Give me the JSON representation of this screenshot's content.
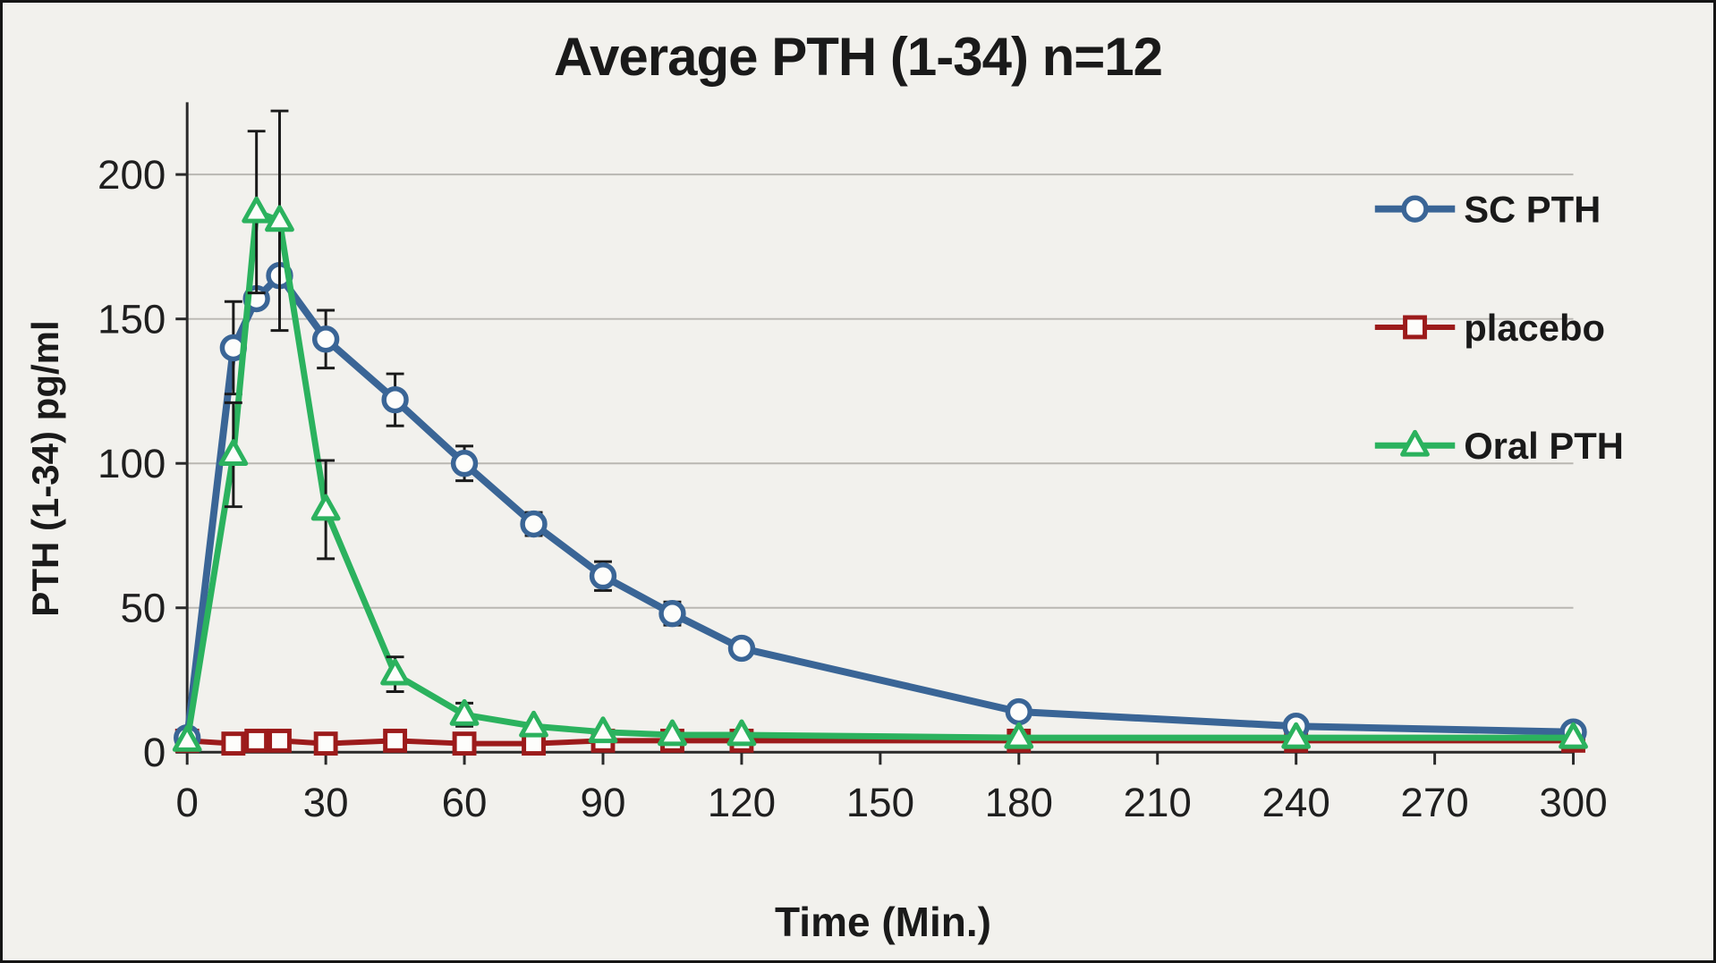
{
  "chart_data": {
    "type": "line",
    "title": "Average PTH (1-34) n=12",
    "xlabel": "Time (Min.)",
    "ylabel": "PTH (1-34) pg/ml",
    "xlim": [
      0,
      300
    ],
    "ylim": [
      0,
      225
    ],
    "x_ticks": [
      0,
      30,
      60,
      90,
      120,
      150,
      180,
      210,
      240,
      270,
      300
    ],
    "y_ticks": [
      0,
      50,
      100,
      150,
      200
    ],
    "grid": "horizontal-only",
    "legend_position": "right-top",
    "x": [
      0,
      10,
      15,
      20,
      30,
      45,
      60,
      75,
      90,
      105,
      120,
      180,
      240,
      300
    ],
    "series": [
      {
        "name": "SC PTH",
        "color": "#3a6596",
        "marker": "circle",
        "line_width": 8,
        "values": [
          5,
          140,
          157,
          165,
          143,
          122,
          100,
          79,
          61,
          48,
          36,
          14,
          9,
          7
        ],
        "errors": [
          0,
          16,
          0,
          0,
          10,
          9,
          6,
          4,
          5,
          4,
          0,
          0,
          0,
          0
        ]
      },
      {
        "name": "placebo",
        "color": "#9c1b1b",
        "marker": "square",
        "line_width": 6,
        "values": [
          4,
          3,
          4,
          4,
          3,
          4,
          3,
          3,
          4,
          4,
          4,
          4,
          4,
          4
        ],
        "errors": [
          0,
          0,
          0,
          0,
          0,
          0,
          0,
          0,
          0,
          0,
          0,
          0,
          0,
          0
        ]
      },
      {
        "name": "Oral PTH",
        "color": "#2bb25e",
        "marker": "triangle",
        "line_width": 7,
        "values": [
          4,
          103,
          187,
          184,
          84,
          27,
          13,
          9,
          7,
          6,
          6,
          5,
          5,
          5
        ],
        "errors": [
          0,
          18,
          28,
          38,
          17,
          6,
          4,
          0,
          0,
          0,
          0,
          0,
          0,
          0
        ]
      }
    ],
    "colors": {
      "grid": "#b9b7b2",
      "axis": "#2a2a2a",
      "error_bar": "#1a1a1a",
      "tick_label": "#1f1f1f",
      "marker_fill": "#fdfdfb",
      "background": "#f2f1ed"
    }
  }
}
